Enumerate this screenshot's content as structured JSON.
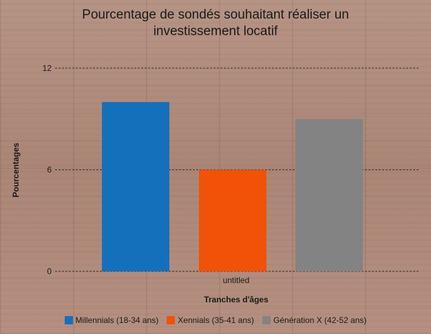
{
  "chart_data": {
    "type": "bar",
    "title": "Pourcentage de sondés souhaitant réaliser un investissement locatif",
    "categories": [
      "untitled"
    ],
    "series": [
      {
        "name": "Millennials (18-34 ans)",
        "values": [
          10
        ],
        "color": "#1570bb"
      },
      {
        "name": "Xennials (35-41 ans)",
        "values": [
          6
        ],
        "color": "#f05208"
      },
      {
        "name": "Génération X (42-52 ans)",
        "values": [
          9
        ],
        "color": "#838383"
      }
    ],
    "xlabel": "Tranches d'âges",
    "ylabel": "Pourcentages",
    "ylim": [
      0,
      12
    ],
    "yticks": [
      0,
      6,
      12
    ],
    "grid": true,
    "legend_position": "bottom"
  }
}
